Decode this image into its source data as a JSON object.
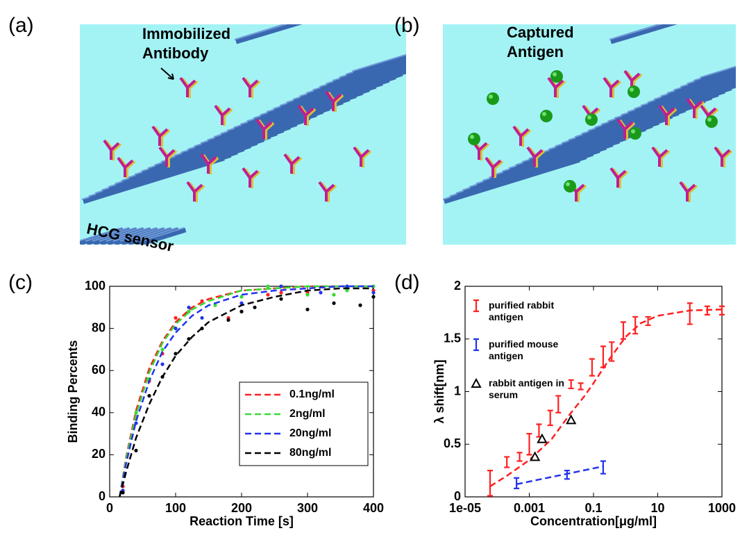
{
  "panels": {
    "labels": [
      "(a)",
      "(b)",
      "(c)",
      "(d)"
    ],
    "a": {
      "text": [
        "Immobilized",
        "Antibody"
      ],
      "sensor": "HCG sensor"
    },
    "b": {
      "text": [
        "Captured",
        "Antigen"
      ]
    }
  },
  "chart_data": [
    {
      "type": "line",
      "xlabel": "Reaction Time [s]",
      "ylabel": "Binding Percents",
      "xlim": [
        0,
        400
      ],
      "xticks": [
        0,
        100,
        200,
        300,
        400
      ],
      "ylim": [
        0,
        100
      ],
      "yticks": [
        0,
        20,
        40,
        60,
        80,
        100
      ],
      "legend": "lower right",
      "series": [
        {
          "name": "0.1ng/ml",
          "color": "#ff2020",
          "marker": "dot",
          "x": [
            20,
            40,
            60,
            80,
            100,
            120,
            140,
            180,
            200,
            240,
            260,
            300,
            360,
            400
          ],
          "values": [
            5,
            38,
            55,
            68,
            85,
            88,
            93,
            85,
            88,
            96,
            97,
            97,
            99,
            98
          ],
          "fit_x": [
            15,
            25,
            40,
            60,
            80,
            100,
            125,
            150,
            200,
            250,
            300,
            350,
            400
          ],
          "fit": [
            0,
            19,
            41,
            61,
            74,
            83,
            90,
            94,
            98,
            99,
            100,
            100,
            100
          ]
        },
        {
          "name": "2ng/ml",
          "color": "#33dd33",
          "marker": "dot",
          "x": [
            20,
            40,
            60,
            80,
            100,
            120,
            160,
            200,
            240,
            260,
            300,
            340,
            360,
            400
          ],
          "values": [
            3,
            40,
            56,
            70,
            80,
            88,
            91,
            95,
            100,
            100,
            96,
            96,
            98,
            100
          ],
          "fit_x": [
            15,
            25,
            40,
            60,
            80,
            100,
            125,
            150,
            200,
            250,
            300,
            350,
            400
          ],
          "fit": [
            0,
            18,
            39,
            59,
            73,
            82,
            89,
            93,
            98,
            99,
            100,
            100,
            100
          ]
        },
        {
          "name": "20ng/ml",
          "color": "#2233ee",
          "marker": "dot",
          "x": [
            20,
            40,
            60,
            80,
            100,
            120,
            140,
            200,
            260,
            320,
            360,
            400
          ],
          "values": [
            3,
            35,
            48,
            63,
            80,
            90,
            85,
            92,
            100,
            97,
            100,
            97
          ],
          "fit_x": [
            15,
            25,
            40,
            60,
            80,
            100,
            125,
            150,
            200,
            250,
            300,
            350,
            400
          ],
          "fit": [
            0,
            16,
            36,
            55,
            69,
            78,
            86,
            91,
            96,
            98,
            99,
            100,
            100
          ]
        },
        {
          "name": "80ng/ml",
          "color": "#000000",
          "marker": "dot",
          "x": [
            20,
            40,
            60,
            80,
            100,
            120,
            140,
            180,
            200,
            220,
            260,
            300,
            340,
            380,
            400
          ],
          "values": [
            2,
            22,
            48,
            57,
            68,
            75,
            80,
            84,
            88,
            90,
            94,
            89,
            92,
            91,
            95
          ],
          "fit_x": [
            15,
            25,
            40,
            60,
            80,
            100,
            125,
            150,
            200,
            250,
            300,
            350,
            400
          ],
          "fit": [
            0,
            12,
            28,
            44,
            57,
            67,
            76,
            83,
            91,
            95,
            98,
            99,
            99
          ]
        }
      ]
    },
    {
      "type": "errorbar",
      "xlabel": "Concentration[μg/ml]",
      "ylabel": "λ shift[nm]",
      "xscale": "log",
      "xlim": [
        1e-05,
        1000
      ],
      "xticks": [
        {
          "value": 1e-05,
          "label": "1e-05"
        },
        0.001,
        0.1,
        10,
        1000
      ],
      "ylim": [
        0,
        2
      ],
      "yticks": [
        0,
        0.5,
        1,
        1.5,
        2
      ],
      "legend": "upper left",
      "series": [
        {
          "name": "purified rabbit antigen",
          "color": "#ff2020",
          "marker": "errorbar",
          "x": [
            6e-05,
            0.0002,
            0.0005,
            0.001,
            0.002,
            0.0045,
            0.008,
            0.02,
            0.04,
            0.09,
            0.2,
            0.37,
            0.85,
            2,
            5,
            100,
            350,
            1000
          ],
          "values": [
            0.13,
            0.33,
            0.38,
            0.5,
            0.63,
            0.75,
            0.88,
            1.07,
            1.05,
            1.23,
            1.33,
            1.38,
            1.58,
            1.63,
            1.67,
            1.74,
            1.77,
            1.77
          ],
          "errors": [
            0.12,
            0.05,
            0.04,
            0.1,
            0.06,
            0.07,
            0.08,
            0.04,
            0.03,
            0.08,
            0.1,
            0.09,
            0.08,
            0.08,
            0.04,
            0.1,
            0.04,
            0.04
          ],
          "fit_x": [
            6e-05,
            0.0002,
            0.001,
            0.005,
            0.02,
            0.05,
            0.1,
            0.3,
            1,
            3,
            10,
            100,
            1000
          ],
          "fit": [
            0.1,
            0.2,
            0.35,
            0.55,
            0.8,
            0.95,
            1.08,
            1.3,
            1.52,
            1.65,
            1.72,
            1.77,
            1.78
          ]
        },
        {
          "name": "purified mouse antigen",
          "color": "#2233ee",
          "marker": "errorbar",
          "x": [
            0.0004,
            0.015,
            0.2
          ],
          "values": [
            0.13,
            0.21,
            0.28
          ],
          "errors": [
            0.05,
            0.04,
            0.06
          ],
          "fit_x": [
            0.0004,
            0.2
          ],
          "fit": [
            0.12,
            0.29
          ]
        },
        {
          "name": "rabbit antigen in serum",
          "color": "#000000",
          "marker": "triangle",
          "x": [
            0.0015,
            0.0025,
            0.02
          ],
          "values": [
            0.38,
            0.55,
            0.73
          ]
        }
      ]
    }
  ]
}
